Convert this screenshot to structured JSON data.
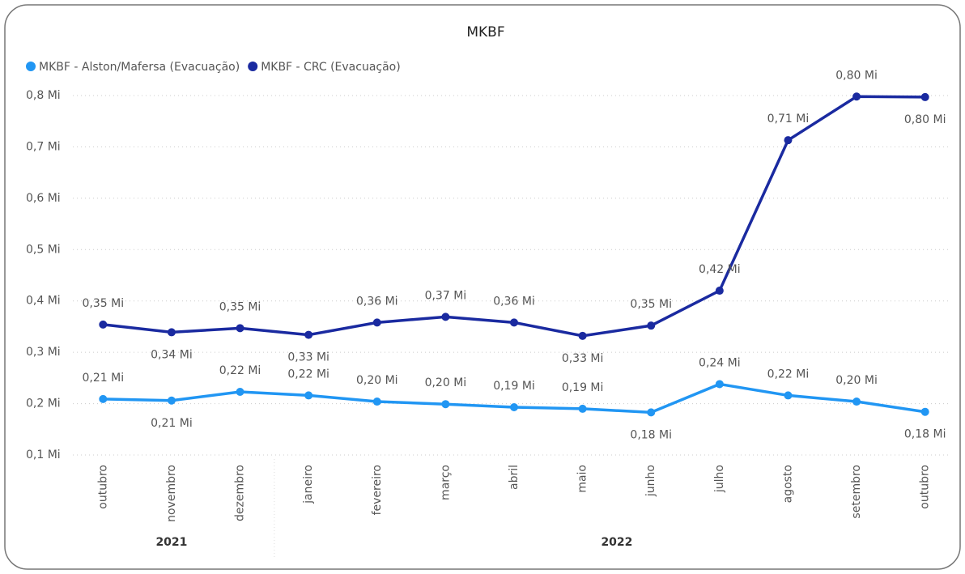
{
  "chart_data": {
    "type": "line",
    "title": "MKBF",
    "categories": [
      "outubro",
      "novembro",
      "dezembro",
      "janeiro",
      "fevereiro",
      "março",
      "abril",
      "maio",
      "junho",
      "julho",
      "agosto",
      "setembro",
      "outubro"
    ],
    "x_groups": [
      {
        "label": "2021",
        "count": 3
      },
      {
        "label": "2022",
        "count": 10
      }
    ],
    "series": [
      {
        "name": "MKBF - Alston/Mafersa (Evacuação)",
        "color": "#2196f3",
        "values": [
          0.209,
          0.206,
          0.223,
          0.216,
          0.204,
          0.199,
          0.193,
          0.19,
          0.183,
          0.238,
          0.216,
          0.204,
          0.184
        ],
        "value_labels": [
          "0,21 Mi",
          "0,21 Mi",
          "0,22 Mi",
          "0,22 Mi",
          "0,20 Mi",
          "0,20 Mi",
          "0,19 Mi",
          "0,19 Mi",
          "0,18 Mi",
          "0,24 Mi",
          "0,22 Mi",
          "0,20 Mi",
          "0,18 Mi"
        ]
      },
      {
        "name": "MKBF - CRC (Evacuação)",
        "color": "#1a2aa0",
        "values": [
          0.354,
          0.339,
          0.347,
          0.334,
          0.358,
          0.369,
          0.358,
          0.332,
          0.352,
          0.42,
          0.713,
          0.798,
          0.797
        ],
        "value_labels": [
          "0,35 Mi",
          "0,34 Mi",
          "0,35 Mi",
          "0,33 Mi",
          "0,36 Mi",
          "0,37 Mi",
          "0,36 Mi",
          "0,33 Mi",
          "0,35 Mi",
          "0,42 Mi",
          "0,71 Mi",
          "0,80 Mi",
          "0,80 Mi"
        ]
      }
    ],
    "ylim": [
      0.1,
      0.8
    ],
    "yticks": [
      {
        "value": 0.1,
        "label": "0,1 Mi"
      },
      {
        "value": 0.2,
        "label": "0,2 Mi"
      },
      {
        "value": 0.3,
        "label": "0,3 Mi"
      },
      {
        "value": 0.4,
        "label": "0,4 Mi"
      },
      {
        "value": 0.5,
        "label": "0,5 Mi"
      },
      {
        "value": 0.6,
        "label": "0,6 Mi"
      },
      {
        "value": 0.7,
        "label": "0,7 Mi"
      },
      {
        "value": 0.8,
        "label": "0,8 Mi"
      }
    ],
    "grid": true,
    "legend": "top-left"
  }
}
